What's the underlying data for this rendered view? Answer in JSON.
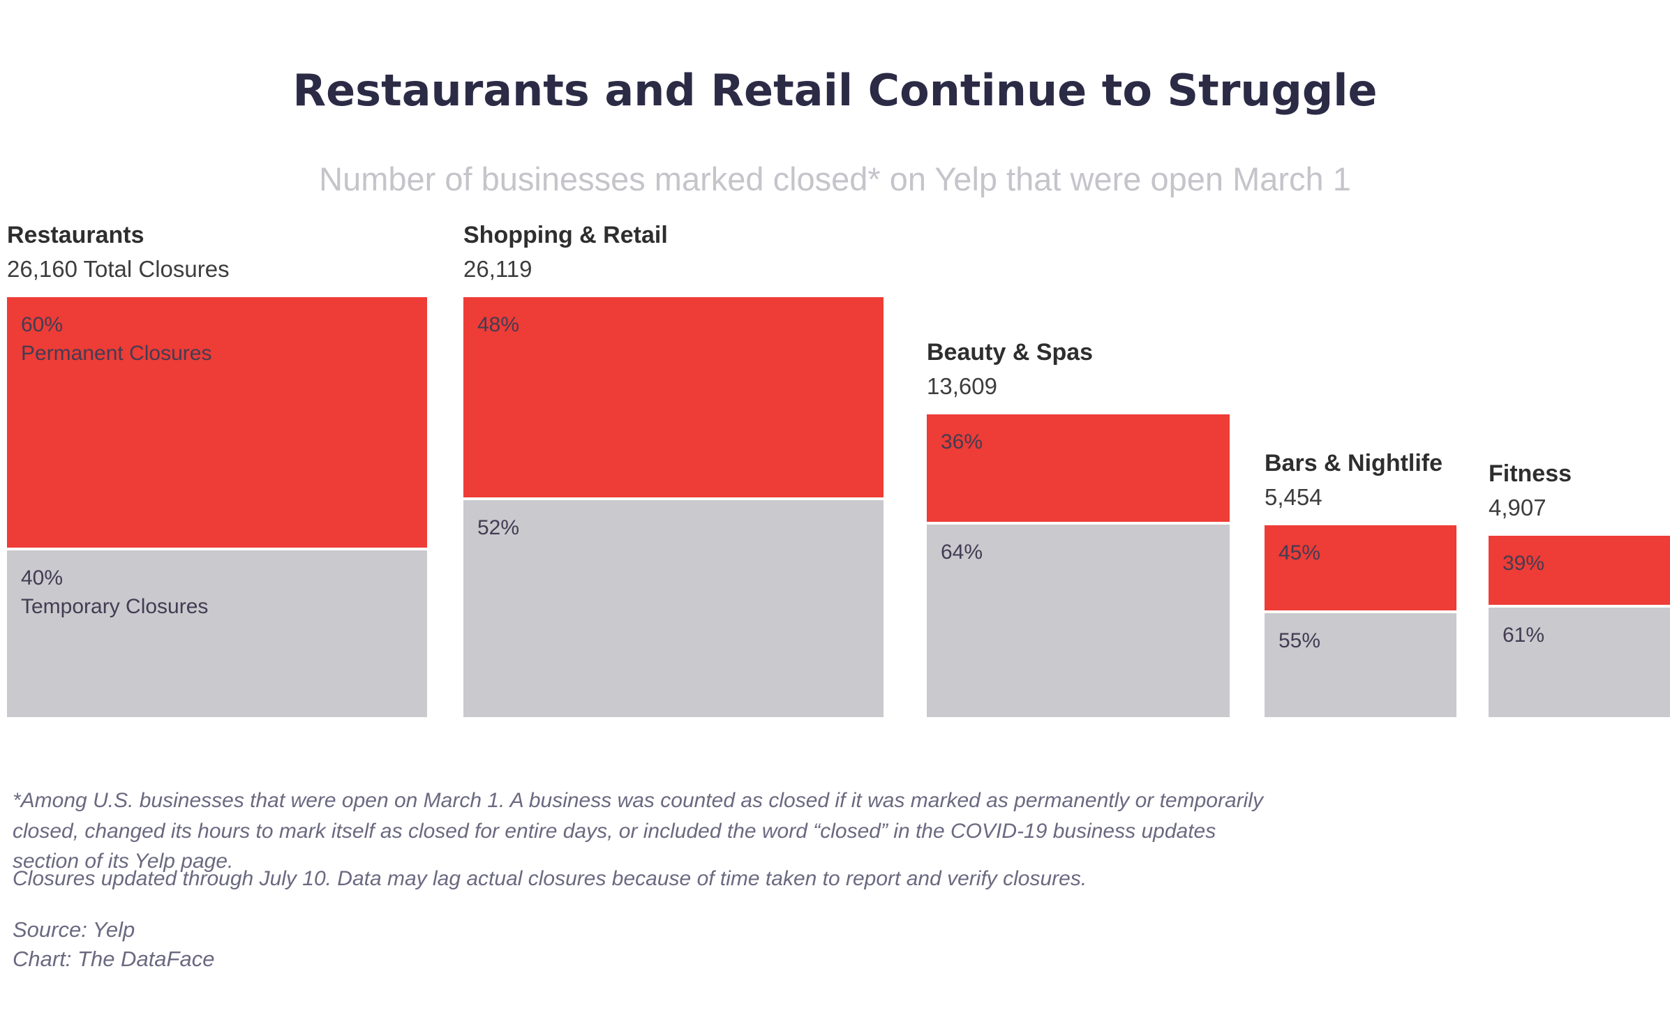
{
  "header": {
    "title": "Restaurants and Retail Continue to Struggle",
    "subtitle": "Number of businesses marked closed* on Yelp that were open March 1"
  },
  "chart_data": {
    "type": "bar",
    "subtype": "proportional-stacked-squares",
    "title": "Restaurants and Retail Continue to Struggle",
    "subtitle": "Number of businesses marked closed* on Yelp that were open March 1",
    "categories": [
      "Restaurants",
      "Shopping & Retail",
      "Beauty & Spas",
      "Bars & Nightlife",
      "Fitness"
    ],
    "totals": [
      26160,
      26119,
      13609,
      5454,
      4907
    ],
    "series": [
      {
        "name": "Permanent Closures",
        "unit": "%",
        "values": [
          60,
          48,
          36,
          45,
          39
        ]
      },
      {
        "name": "Temporary Closures",
        "unit": "%",
        "values": [
          40,
          52,
          64,
          55,
          61
        ]
      }
    ],
    "layout_hints": "Squares bottom-aligned; square area proportional to total closures; red segment on top = permanent share, gray below = temporary share; no axes or gridlines"
  },
  "categories_detail": [
    {
      "name": "Restaurants",
      "total_label": "26,160 Total Closures",
      "permanent_pct": "60%",
      "permanent_sublabel": "Permanent Closures",
      "temporary_pct": "40%",
      "temporary_sublabel": "Temporary Closures"
    },
    {
      "name": "Shopping & Retail",
      "total_label": "26,119",
      "permanent_pct": "48%",
      "permanent_sublabel": "",
      "temporary_pct": "52%",
      "temporary_sublabel": ""
    },
    {
      "name": "Beauty & Spas",
      "total_label": "13,609",
      "permanent_pct": "36%",
      "permanent_sublabel": "",
      "temporary_pct": "64%",
      "temporary_sublabel": ""
    },
    {
      "name": "Bars & Nightlife",
      "total_label": "5,454",
      "permanent_pct": "45%",
      "permanent_sublabel": "",
      "temporary_pct": "55%",
      "temporary_sublabel": ""
    },
    {
      "name": "Fitness",
      "total_label": "4,907",
      "permanent_pct": "39%",
      "permanent_sublabel": "",
      "temporary_pct": "61%",
      "temporary_sublabel": ""
    }
  ],
  "footnotes": {
    "definition": "*Among U.S. businesses that were open on March 1. A business was counted as closed if it was marked as permanently or temporarily closed, changed its hours to mark itself as closed for entire days, or included the word “closed” in the COVID-19 business updates section of its Yelp page.",
    "update": "Closures updated through July 10. Data may lag actual closures because of time taken to report and verify closures."
  },
  "source": {
    "source_line": "Source: Yelp",
    "chart_line": "Chart: The DataFace"
  },
  "colors": {
    "permanent_red": "#ee3c36",
    "temporary_gray": "#c9c9ce",
    "title_navy": "#2b2b46",
    "subtitle_gray": "#c5c4ca",
    "footnote_gray": "#6a6980",
    "segment_label": "#433c52"
  }
}
